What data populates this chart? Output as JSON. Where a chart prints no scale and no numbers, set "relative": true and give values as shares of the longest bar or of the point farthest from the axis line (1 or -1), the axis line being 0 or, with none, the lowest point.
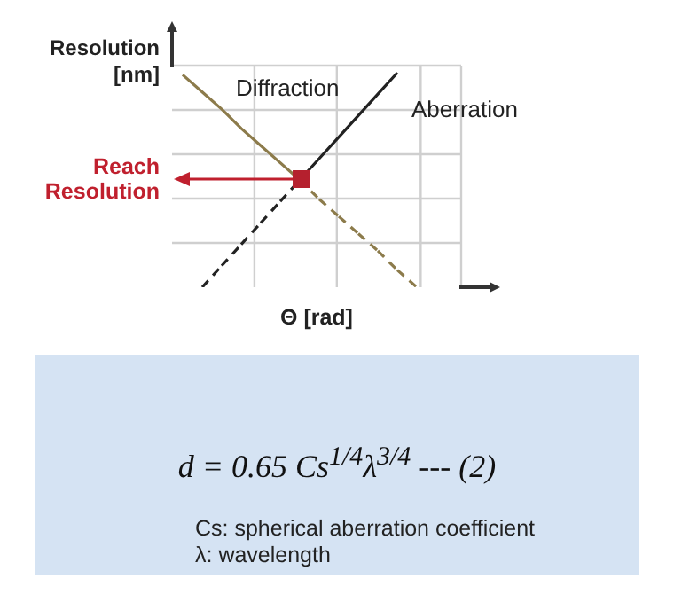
{
  "chart_data": {
    "type": "line",
    "relative": true,
    "xlabel": "Θ [rad]",
    "ylabel": "Resolution [nm]",
    "grid": true,
    "legend": false,
    "marker": "none",
    "categories": [
      null,
      null,
      null,
      null,
      null,
      null,
      null,
      null,
      null,
      null,
      null,
      null,
      null
    ],
    "series": [
      {
        "name": "Diffraction",
        "color": "#8c7b4b",
        "line_style": "dashed",
        "values": [
          0.99,
          0.91,
          0.83,
          0.74,
          0.66,
          0.58,
          0.5,
          0.41,
          0.33,
          0.25,
          0.17,
          0.08,
          0
        ]
      },
      {
        "name": "Aberration",
        "color": "#222222",
        "line_style": "dashed",
        "values": [
          null,
          0,
          0.1,
          0.2,
          0.3,
          0.4,
          0.5,
          0.6,
          0.7,
          0.8,
          0.9,
          1.0,
          null
        ]
      }
    ],
    "annotations": [
      "Reach Resolution",
      "d = 0.65 Cs$^{1/4}$λ$^{3/4}$ --- (2)",
      "Cs: spherical aberration coefficient",
      "λ: wavelength"
    ]
  }
}
